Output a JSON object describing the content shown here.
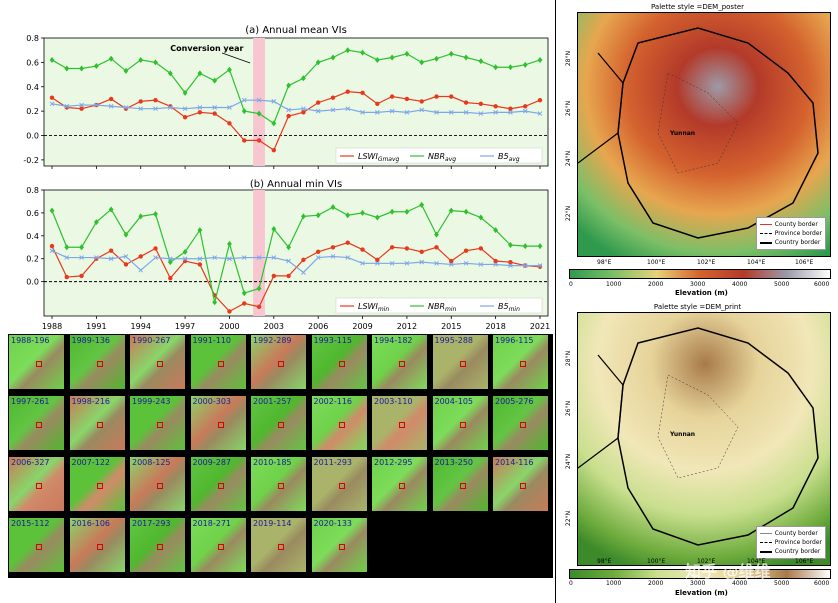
{
  "colors": {
    "lswi": "#e8391c",
    "nbr": "#2ec12e",
    "b5": "#7da7e8",
    "conversion_band": "#f7c6d0",
    "plot_bg": "#eaf8e4"
  },
  "chart_data": [
    {
      "type": "line",
      "title": "(a) Annual mean VIs",
      "annotation": "Conversion year",
      "x": [
        1988,
        1989,
        1990,
        1991,
        1992,
        1993,
        1994,
        1995,
        1996,
        1997,
        1998,
        1999,
        2000,
        2001,
        2002,
        2003,
        2004,
        2005,
        2006,
        2007,
        2008,
        2009,
        2010,
        2011,
        2012,
        2013,
        2014,
        2015,
        2016,
        2017,
        2018,
        2019,
        2020,
        2021
      ],
      "ylim": [
        -0.25,
        0.8
      ],
      "yticks": [
        "-0.2",
        "0.0",
        "0.2",
        "0.4",
        "0.6",
        "0.8"
      ],
      "series": [
        {
          "name": "LSWI_Gmavg",
          "values": [
            0.31,
            0.23,
            0.22,
            0.25,
            0.3,
            0.22,
            0.28,
            0.29,
            0.24,
            0.15,
            0.19,
            0.18,
            0.1,
            -0.04,
            -0.04,
            -0.12,
            0.16,
            0.19,
            0.27,
            0.31,
            0.36,
            0.35,
            0.26,
            0.32,
            0.3,
            0.28,
            0.32,
            0.32,
            0.27,
            0.26,
            0.24,
            0.22,
            0.24,
            0.29
          ]
        },
        {
          "name": "NBR_avg",
          "values": [
            0.62,
            0.55,
            0.55,
            0.57,
            0.63,
            0.53,
            0.62,
            0.6,
            0.51,
            0.35,
            0.51,
            0.45,
            0.54,
            0.2,
            0.18,
            0.1,
            0.41,
            0.47,
            0.6,
            0.64,
            0.7,
            0.68,
            0.62,
            0.64,
            0.67,
            0.6,
            0.63,
            0.67,
            0.64,
            0.61,
            0.56,
            0.56,
            0.58,
            0.62
          ]
        },
        {
          "name": "B5_avg",
          "values": [
            0.26,
            0.24,
            0.25,
            0.25,
            0.24,
            0.23,
            0.22,
            0.22,
            0.23,
            0.22,
            0.23,
            0.23,
            0.23,
            0.29,
            0.29,
            0.28,
            0.21,
            0.22,
            0.2,
            0.21,
            0.22,
            0.19,
            0.19,
            0.2,
            0.19,
            0.21,
            0.19,
            0.19,
            0.19,
            0.18,
            0.19,
            0.19,
            0.2,
            0.18
          ]
        }
      ],
      "legend": [
        "LSWI",
        "Gmavg",
        "NBR",
        "avg",
        "B5",
        "avg"
      ]
    },
    {
      "type": "line",
      "title": "(b) Annual min VIs",
      "x": [
        1988,
        1989,
        1990,
        1991,
        1992,
        1993,
        1994,
        1995,
        1996,
        1997,
        1998,
        1999,
        2000,
        2001,
        2002,
        2003,
        2004,
        2005,
        2006,
        2007,
        2008,
        2009,
        2010,
        2011,
        2012,
        2013,
        2014,
        2015,
        2016,
        2017,
        2018,
        2019,
        2020,
        2021
      ],
      "ylim": [
        -0.3,
        0.8
      ],
      "yticks": [
        "0.0",
        "0.2",
        "0.4",
        "0.6",
        "0.8"
      ],
      "xticks": [
        "1988",
        "1991",
        "1994",
        "1997",
        "2000",
        "2003",
        "2006",
        "2009",
        "2012",
        "2015",
        "2018",
        "2021"
      ],
      "series": [
        {
          "name": "LSWI_min",
          "values": [
            0.31,
            0.04,
            0.05,
            0.2,
            0.27,
            0.15,
            0.22,
            0.29,
            0.03,
            0.18,
            0.15,
            -0.12,
            -0.26,
            -0.19,
            -0.22,
            0.05,
            0.05,
            0.19,
            0.26,
            0.3,
            0.34,
            0.28,
            0.19,
            0.3,
            0.29,
            0.26,
            0.3,
            0.18,
            0.27,
            0.29,
            0.18,
            0.17,
            0.14,
            0.13
          ]
        },
        {
          "name": "NBR_min",
          "values": [
            0.62,
            0.3,
            0.3,
            0.52,
            0.63,
            0.41,
            0.57,
            0.59,
            0.17,
            0.26,
            0.45,
            -0.18,
            0.33,
            -0.1,
            -0.06,
            0.46,
            0.3,
            0.57,
            0.58,
            0.65,
            0.58,
            0.6,
            0.56,
            0.61,
            0.61,
            0.67,
            0.41,
            0.62,
            0.61,
            0.56,
            0.45,
            0.32,
            0.31,
            0.31
          ]
        },
        {
          "name": "B5_min",
          "values": [
            0.27,
            0.21,
            0.21,
            0.21,
            0.2,
            0.22,
            0.1,
            0.21,
            0.2,
            0.2,
            0.2,
            0.21,
            0.2,
            0.21,
            0.21,
            0.21,
            0.18,
            0.08,
            0.21,
            0.22,
            0.21,
            0.16,
            0.16,
            0.16,
            0.16,
            0.17,
            0.16,
            0.15,
            0.16,
            0.15,
            0.15,
            0.14,
            0.14,
            0.14
          ]
        }
      ],
      "legend": [
        "LSWI",
        "min",
        "NBR",
        "min",
        "B5",
        "min"
      ]
    }
  ],
  "thumbnails": [
    "1988-196",
    "1989-136",
    "1990-267",
    "1991-110",
    "1992-289",
    "1993-115",
    "1994-182",
    "1995-288",
    "1996-115",
    "1997-261",
    "1998-216",
    "1999-243",
    "2000-303",
    "2001-257",
    "2002-116",
    "2003-110",
    "2004-105",
    "2005-276",
    "2006-327",
    "2007-122",
    "2008-125",
    "2009-287",
    "2010-185",
    "2011-293",
    "2012-295",
    "2013-250",
    "2014-116",
    "2015-112",
    "2016-106",
    "2017-293",
    "2018-271",
    "2019-114",
    "2020-133"
  ],
  "maps": [
    {
      "title": "Palette style =DEM_poster",
      "place": "Yunnan",
      "colorbar_label": "Elevation (m)"
    },
    {
      "title": "Palette style =DEM_print",
      "place": "Yunnan",
      "colorbar_label": "Elevation (m)"
    }
  ],
  "map_xticks": [
    "98°E",
    "100°E",
    "102°E",
    "104°E",
    "106°E"
  ],
  "map_yticks": [
    "28°N",
    "26°N",
    "24°N",
    "22°N"
  ],
  "colorbar_ticks": [
    "0",
    "1000",
    "2000",
    "3000",
    "4000",
    "5000",
    "6000"
  ],
  "map_legend": [
    "County border",
    "Province border",
    "Country border"
  ],
  "watermark": "知乎 @维维"
}
